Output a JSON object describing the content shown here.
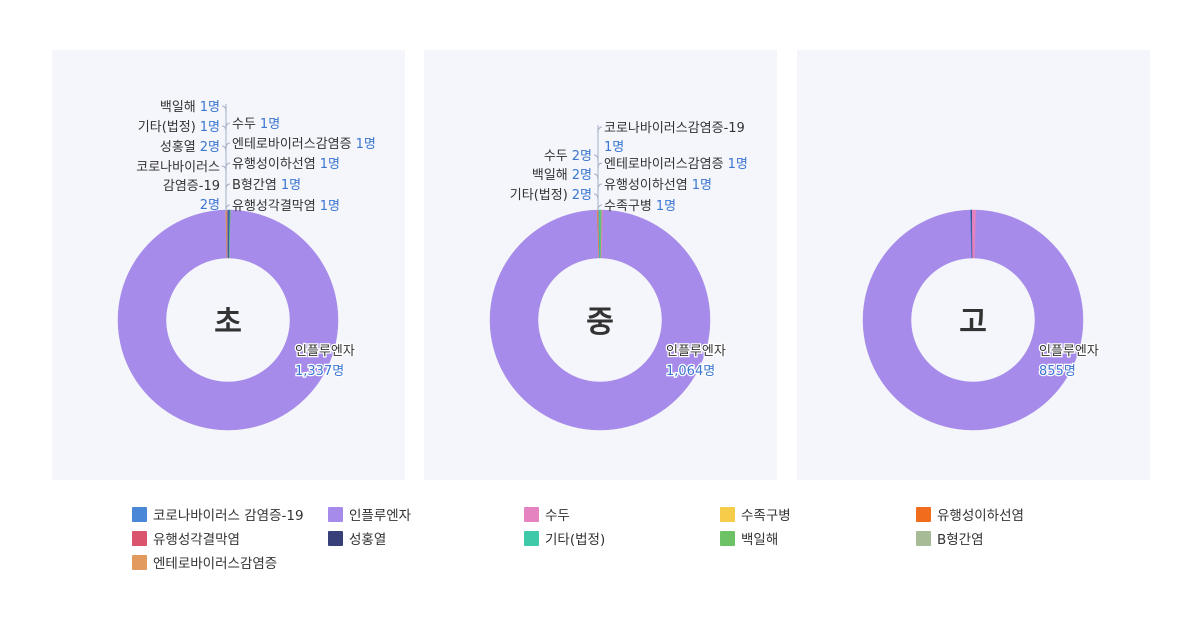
{
  "colors": {
    "코로나바이러스 감염증-19": "#4a87d6",
    "인플루엔자": "#a78bea",
    "수두": "#e583c0",
    "수족구병": "#f6cd4b",
    "유행성이하선염": "#f26c1e",
    "유행성각결막염": "#d9546c",
    "성홍열": "#38407a",
    "기타(법정)": "#3fc9a9",
    "백일해": "#6cc265",
    "B형간염": "#a7bb96",
    "엔테로바이러스감염증": "#e39a5f"
  },
  "legend": [
    "코로나바이러스 감염증-19",
    "인플루엔자",
    "수두",
    "수족구병",
    "유행성이하선염",
    "유행성각결막염",
    "성홍열",
    "기타(법정)",
    "백일해",
    "B형간염",
    "엔테로바이러스감염증"
  ],
  "chart_data": [
    {
      "type": "pie",
      "title": "초",
      "unit": "명",
      "slices": [
        {
          "name": "인플루엔자",
          "value": 1337,
          "label_lines": [
            "인플루엔자"
          ],
          "value_text": "1,337명"
        },
        {
          "name": "수두",
          "value": 1,
          "label_lines": [
            "수두"
          ],
          "value_text": "1명"
        },
        {
          "name": "엔테로바이러스감염증",
          "value": 1,
          "label_lines": [
            "엔테로바이러스감염증"
          ],
          "value_text": "1명"
        },
        {
          "name": "유행성이하선염",
          "value": 1,
          "label_lines": [
            "유행성이하선염"
          ],
          "value_text": "1명"
        },
        {
          "name": "B형간염",
          "value": 1,
          "label_lines": [
            "B형간염"
          ],
          "value_text": "1명"
        },
        {
          "name": "유행성각결막염",
          "value": 1,
          "label_lines": [
            "유행성각결막염"
          ],
          "value_text": "1명"
        },
        {
          "name": "코로나바이러스 감염증-19",
          "value": 2,
          "label_lines": [
            "코로나바이러스",
            "감염증-19"
          ],
          "value_text": "2명"
        },
        {
          "name": "성홍열",
          "value": 2,
          "label_lines": [
            "성홍열"
          ],
          "value_text": "2명"
        },
        {
          "name": "기타(법정)",
          "value": 1,
          "label_lines": [
            "기타(법정)"
          ],
          "value_text": "1명"
        },
        {
          "name": "백일해",
          "value": 1,
          "label_lines": [
            "백일해"
          ],
          "value_text": "1명"
        }
      ]
    },
    {
      "type": "pie",
      "title": "중",
      "unit": "명",
      "slices": [
        {
          "name": "인플루엔자",
          "value": 1064,
          "label_lines": [
            "인플루엔자"
          ],
          "value_text": "1,064명"
        },
        {
          "name": "수족구병",
          "value": 1,
          "label_lines": [
            "수족구병"
          ],
          "value_text": "1명"
        },
        {
          "name": "유행성이하선염",
          "value": 1,
          "label_lines": [
            "유행성이하선염"
          ],
          "value_text": "1명"
        },
        {
          "name": "엔테로바이러스감염증",
          "value": 1,
          "label_lines": [
            "엔테로바이러스감염증"
          ],
          "value_text": "1명"
        },
        {
          "name": "코로나바이러스 감염증-19",
          "value": 1,
          "label_lines": [
            "코로나바이러스감염증-19"
          ],
          "value_text": "1명"
        },
        {
          "name": "기타(법정)",
          "value": 2,
          "label_lines": [
            "기타(법정)"
          ],
          "value_text": "2명"
        },
        {
          "name": "백일해",
          "value": 2,
          "label_lines": [
            "백일해"
          ],
          "value_text": "2명"
        },
        {
          "name": "수두",
          "value": 2,
          "label_lines": [
            "수두"
          ],
          "value_text": "2명"
        }
      ]
    },
    {
      "type": "pie",
      "title": "고",
      "unit": "명",
      "slices": [
        {
          "name": "인플루엔자",
          "value": 855,
          "label_lines": [
            "인플루엔자"
          ],
          "value_text": "855명"
        },
        {
          "name": "코로나바이러스 감염증-19",
          "value": 2
        },
        {
          "name": "성홍열",
          "value": 1
        },
        {
          "name": "수두",
          "value": 5
        }
      ]
    }
  ]
}
